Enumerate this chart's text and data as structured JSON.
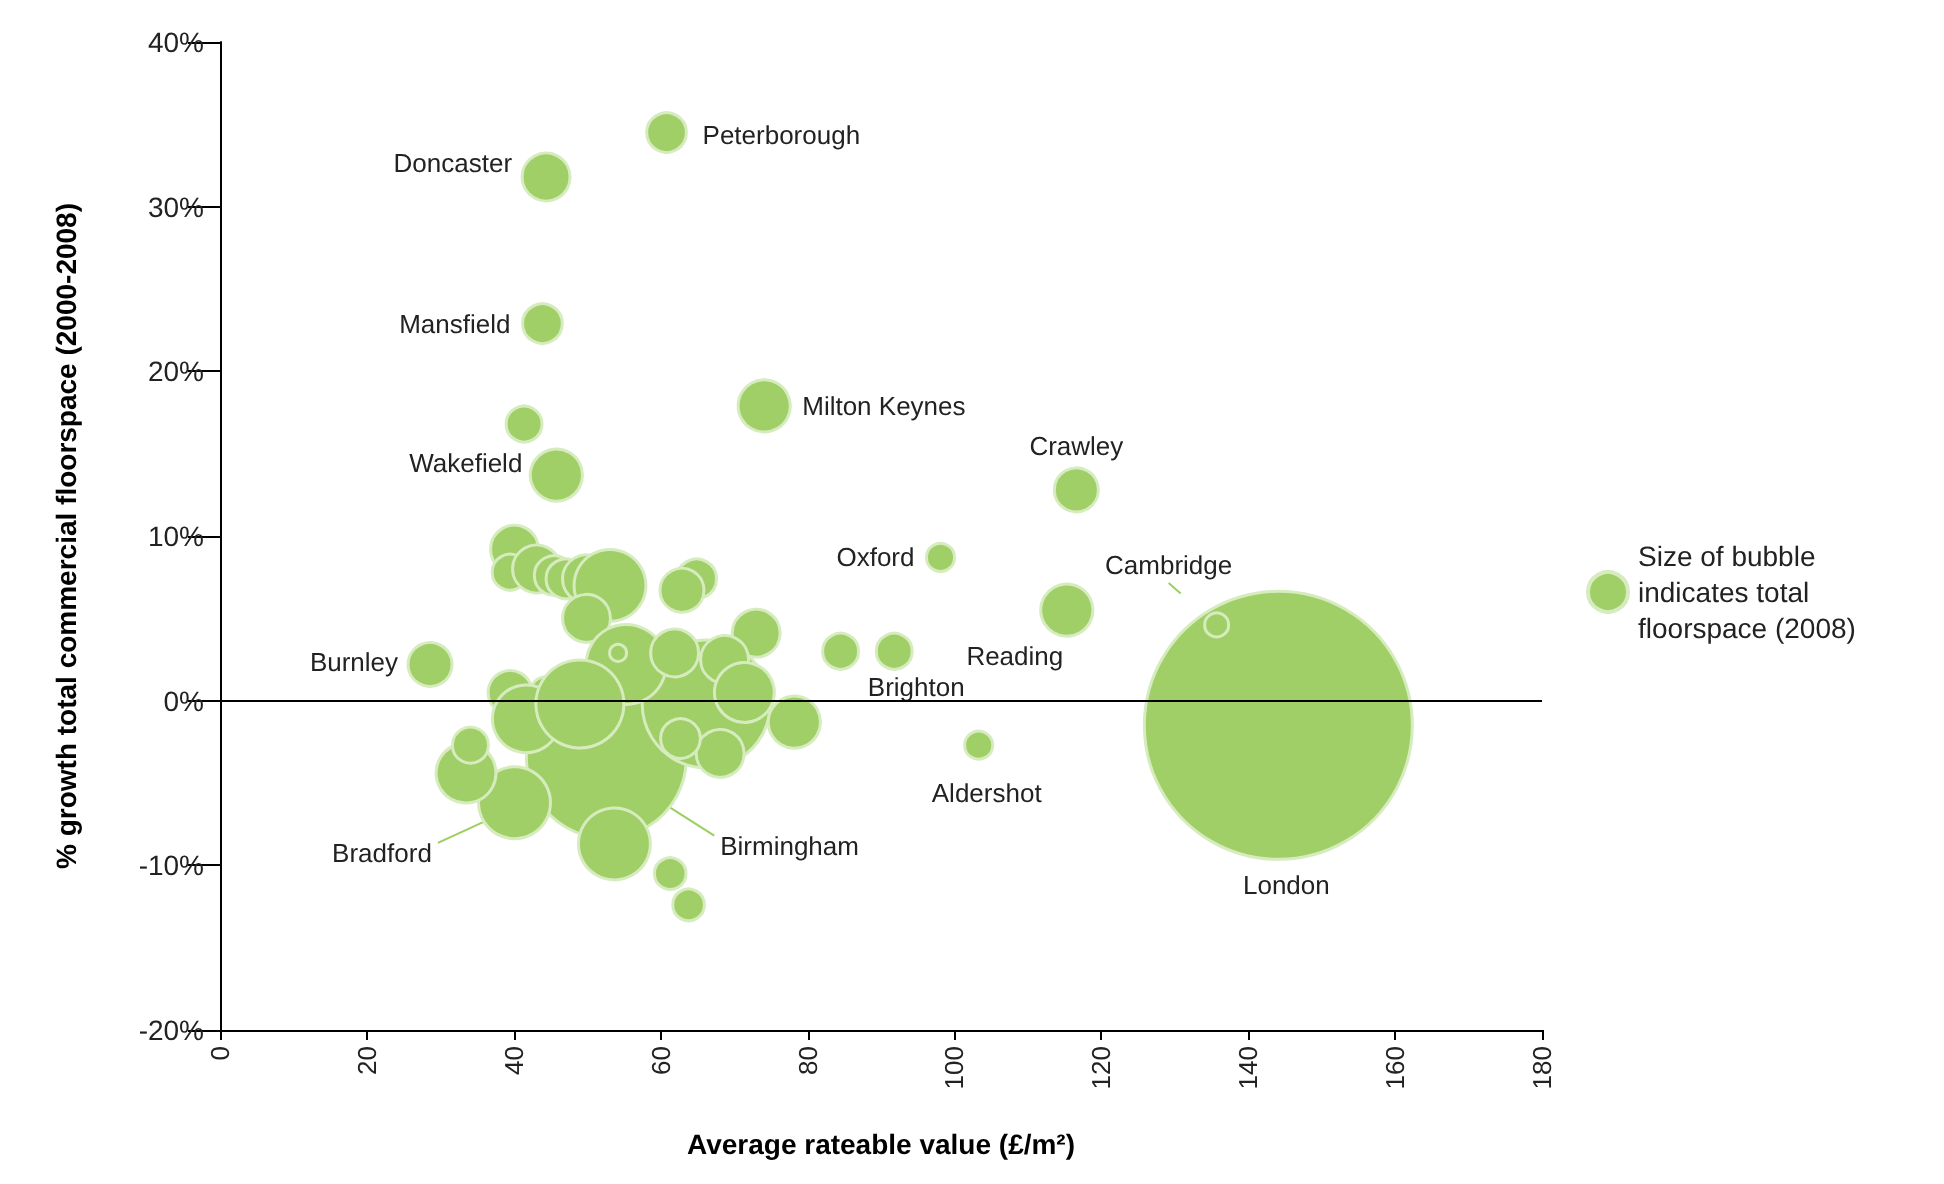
{
  "chart_data": {
    "type": "bubble",
    "xlabel": "Average rateable value (£/m²)",
    "ylabel": "% growth total commercial floorspace (2000-2008)",
    "xlim": [
      0,
      180
    ],
    "xticks": [
      0,
      20,
      40,
      60,
      80,
      100,
      120,
      140,
      160,
      180
    ],
    "ylim": [
      -20,
      40
    ],
    "yticks": [
      {
        "value": -20,
        "label": "-20%"
      },
      {
        "value": -10,
        "label": "-10%"
      },
      {
        "value": 0,
        "label": "0%"
      },
      {
        "value": 10,
        "label": "10%"
      },
      {
        "value": 20,
        "label": "20%"
      },
      {
        "value": 30,
        "label": "30%"
      },
      {
        "value": 40,
        "label": "40%"
      }
    ],
    "grid": false,
    "legend": "right",
    "marker": "circle",
    "ref_lines": [
      {
        "axis": "y",
        "value": 0,
        "color": "#000000"
      }
    ],
    "series": [
      {
        "name": "Size of bubble indicates total floorspace (2008)",
        "color": "#a0cf67",
        "x": [
          144.1,
          52.6,
          66.2,
          60.8,
          44.4,
          43.9,
          41.4,
          45.8,
          74.1,
          116.6,
          98.1,
          115.3,
          135.7,
          103.3,
          91.8,
          84.5,
          28.6,
          40.1,
          40.1,
          39.5,
          43.1,
          45.5,
          47.1,
          49.9,
          53.1,
          49.9,
          64.9,
          62.9,
          73.0,
          39.5,
          44.4,
          55.3,
          54.2,
          61.9,
          68.7,
          71.4,
          78.2,
          41.7,
          49.0,
          33.5,
          34.1,
          53.7,
          61.3,
          63.8,
          68.1,
          62.7
        ],
        "values": [
          -1.5,
          -3.5,
          -0.2,
          34.5,
          31.8,
          22.9,
          16.8,
          13.7,
          17.9,
          12.8,
          8.7,
          5.5,
          4.6,
          -2.7,
          3.0,
          3.0,
          2.2,
          -6.2,
          9.2,
          7.8,
          8.0,
          7.6,
          7.4,
          7.4,
          7.0,
          5.0,
          7.4,
          6.7,
          4.1,
          0.5,
          0.5,
          2.2,
          2.9,
          2.9,
          2.5,
          0.5,
          -1.3,
          -1.1,
          -0.2,
          -4.4,
          -2.7,
          -8.7,
          -10.5,
          -12.4,
          -3.2,
          -2.3
        ],
        "sizes": [
          1,
          0.356,
          0.228,
          0.022,
          0.032,
          0.022,
          0.018,
          0.038,
          0.038,
          0.027,
          0.011,
          0.038,
          0.008,
          0.011,
          0.018,
          0.018,
          0.027,
          0.072,
          0.032,
          0.018,
          0.032,
          0.022,
          0.022,
          0.032,
          0.072,
          0.032,
          0.022,
          0.027,
          0.032,
          0.027,
          0.014,
          0.089,
          0.004,
          0.032,
          0.032,
          0.05,
          0.038,
          0.064,
          0.108,
          0.05,
          0.018,
          0.072,
          0.014,
          0.014,
          0.032,
          0.022
        ]
      }
    ],
    "annotations": [
      {
        "text": "Peterborough",
        "x": 60.8,
        "y": 34.5
      },
      {
        "text": "Doncaster",
        "x": 44.4,
        "y": 31.8
      },
      {
        "text": "Mansfield",
        "x": 43.9,
        "y": 22.9
      },
      {
        "text": "Wakefield",
        "x": 45.8,
        "y": 13.7
      },
      {
        "text": "Milton Keynes",
        "x": 74.1,
        "y": 17.9
      },
      {
        "text": "Crawley",
        "x": 116.6,
        "y": 12.8
      },
      {
        "text": "Oxford",
        "x": 98.1,
        "y": 8.7
      },
      {
        "text": "Reading",
        "x": 115.3,
        "y": 5.5
      },
      {
        "text": "Cambridge",
        "x": 135.7,
        "y": 4.6
      },
      {
        "text": "Brighton",
        "x": 91.8,
        "y": 3.0
      },
      {
        "text": "Aldershot",
        "x": 103.3,
        "y": -2.7
      },
      {
        "text": "London",
        "x": 144.1,
        "y": -9.6
      },
      {
        "text": "Burnley",
        "x": 28.6,
        "y": 2.2
      },
      {
        "text": "Bradford",
        "x": 36.2,
        "y": -7.3
      },
      {
        "text": "Birmingham",
        "x": 61.3,
        "y": -6.5
      }
    ]
  }
}
